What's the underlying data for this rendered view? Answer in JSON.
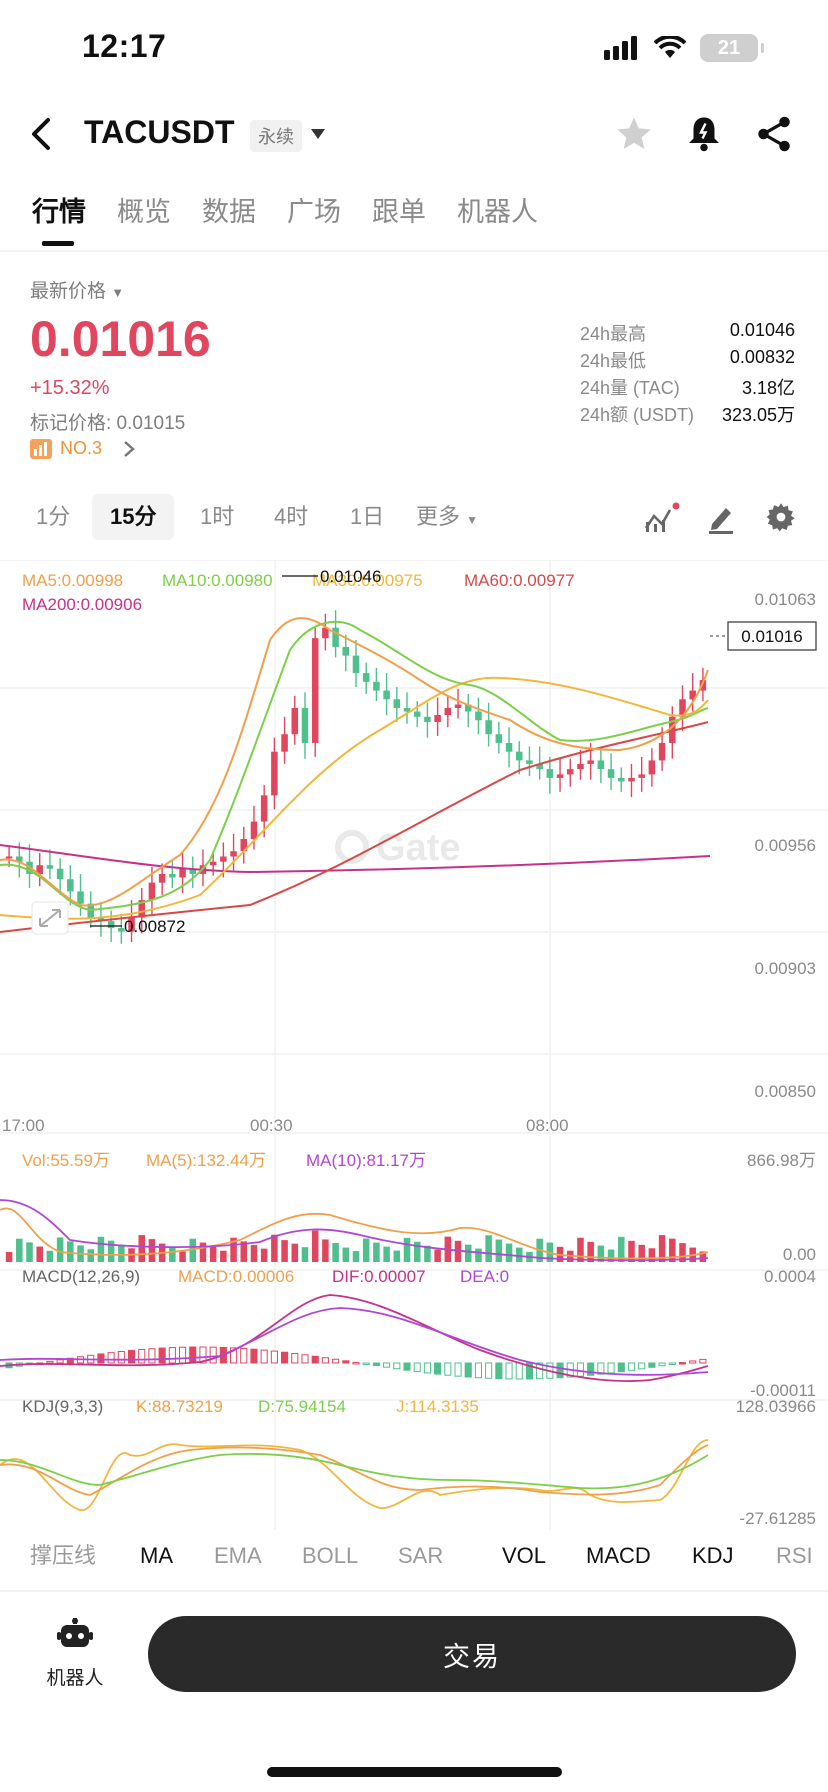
{
  "status_bar": {
    "time": "12:17",
    "battery": "21"
  },
  "header": {
    "pair": "TACUSDT",
    "contract_type": "永续"
  },
  "tabs": [
    "行情",
    "概览",
    "数据",
    "广场",
    "跟单",
    "机器人"
  ],
  "price": {
    "label": "最新价格",
    "last": "0.01016",
    "change": "+15.32%",
    "mark_price": "标记价格: 0.01015",
    "rank": "NO.3"
  },
  "stats": [
    {
      "label": "24h最高",
      "value": "0.01046"
    },
    {
      "label": "24h最低",
      "value": "0.00832"
    },
    {
      "label": "24h量 (TAC)",
      "value": "3.18亿"
    },
    {
      "label": "24h额 (USDT)",
      "value": "323.05万"
    }
  ],
  "timeframes": [
    "1分",
    "15分",
    "1时",
    "4时",
    "1日",
    "更多"
  ],
  "timeframe_selected": "15分",
  "main_legend": {
    "ma5": "MA5:0.00998",
    "ma10": "MA10:0.00980",
    "ma30": "MA30:0.00975",
    "ma60": "MA60:0.00977",
    "ma200": "MA200:0.00906"
  },
  "price_axis": [
    "0.01063",
    "0.00956",
    "0.00903",
    "0.00850"
  ],
  "current_price_tag": "0.01016",
  "high_label": "0.01046",
  "low_label": "0.00872",
  "time_axis": [
    "17:00",
    "00:30",
    "08:00"
  ],
  "vol_legend": {
    "vol": "Vol:55.59万",
    "ma5": "MA(5):132.44万",
    "ma10": "MA(10):81.17万"
  },
  "vol_axis": [
    "866.98万",
    "0.00"
  ],
  "macd_legend": {
    "name": "MACD(12,26,9)",
    "macd": "MACD:0.00006",
    "dif": "DIF:0.00007",
    "dea": "DEA:0"
  },
  "macd_axis": [
    "0.0004",
    "-0.00011"
  ],
  "kdj_legend": {
    "name": "KDJ(9,3,3)",
    "k": "K:88.73219",
    "d": "D:75.94154",
    "j": "J:114.3135"
  },
  "kdj_axis": [
    "128.03966",
    "-27.61285"
  ],
  "indicators": [
    "撑压线",
    "MA",
    "EMA",
    "BOLL",
    "SAR",
    "VOL",
    "MACD",
    "KDJ",
    "RSI"
  ],
  "bottom": {
    "robot_label": "机器人",
    "trade_button": "交易"
  },
  "colors": {
    "up": "#e0465e",
    "down": "#4fbf8c",
    "ma5": "#f0a04b",
    "ma10": "#9ad35a",
    "ma30": "#f0b73c",
    "ma60": "#d94848",
    "ma200": "#c8308a"
  },
  "chart_data": {
    "type": "candlestick",
    "title": "",
    "x_ticks": [
      "17:00",
      "00:30",
      "08:00"
    ],
    "ylim": [
      0.0085,
      0.01063
    ],
    "high": 0.01046,
    "low": 0.00872,
    "last": 0.01016,
    "close_series": [
      0.00915,
      0.00912,
      0.00905,
      0.0091,
      0.00908,
      0.00902,
      0.00895,
      0.00888,
      0.0088,
      0.00878,
      0.00874,
      0.00872,
      0.0088,
      0.0089,
      0.009,
      0.00905,
      0.00903,
      0.00908,
      0.00905,
      0.0091,
      0.00912,
      0.00915,
      0.00918,
      0.00925,
      0.00935,
      0.0095,
      0.00975,
      0.00985,
      0.01,
      0.0098,
      0.0104,
      0.01046,
      0.01035,
      0.0103,
      0.0102,
      0.01015,
      0.0101,
      0.01005,
      0.01,
      0.00998,
      0.00995,
      0.00992,
      0.00996,
      0.01,
      0.01002,
      0.00998,
      0.00993,
      0.00985,
      0.0098,
      0.00975,
      0.0097,
      0.00968,
      0.00965,
      0.0096,
      0.00962,
      0.00965,
      0.00968,
      0.0097,
      0.00965,
      0.0096,
      0.00958,
      0.0096,
      0.00962,
      0.0097,
      0.0098,
      0.00995,
      0.01005,
      0.0101,
      0.01016
    ]
  }
}
